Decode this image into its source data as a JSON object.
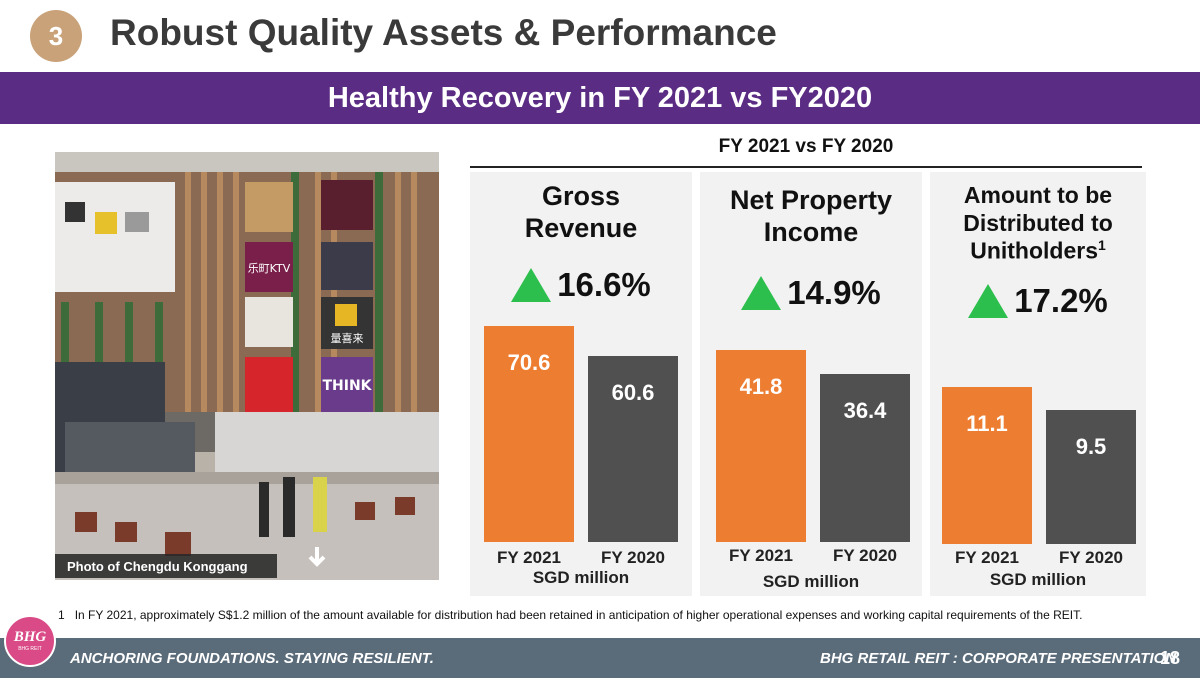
{
  "header": {
    "section_number": "3",
    "title": "Robust Quality Assets & Performance",
    "banner": "Healthy Recovery in FY 2021 vs FY2020"
  },
  "photo": {
    "caption": "Photo of Chengdu Konggang",
    "signs": [
      "乐町KTV",
      "THINK",
      "量喜来"
    ]
  },
  "comparison": {
    "title": "FY 2021 vs FY 2020",
    "panels": [
      {
        "heading": "Gross Revenue",
        "heading_lines": [
          "Gross",
          "Revenue"
        ],
        "growth": "16.6%",
        "fy2021": "70.6",
        "fy2020": "60.6",
        "unit": "SGD million"
      },
      {
        "heading": "Net Property Income",
        "heading_lines": [
          "Net Property",
          "Income"
        ],
        "growth": "14.9%",
        "fy2021": "41.8",
        "fy2020": "36.4",
        "unit": "SGD million"
      },
      {
        "heading": "Amount to be Distributed to Unitholders",
        "heading_lines": [
          "Amount to be",
          "Distributed to",
          "Unitholders"
        ],
        "heading_sup": "1",
        "growth": "17.2%",
        "fy2021": "11.1",
        "fy2020": "9.5",
        "unit": "SGD million"
      }
    ],
    "x_labels": [
      "FY 2021",
      "FY 2020"
    ],
    "colors": {
      "fy2021": "#ed7d31",
      "fy2020": "#505050",
      "growth_arrow": "#2dbf4d"
    }
  },
  "footnote": {
    "marker": "1",
    "text": "In FY 2021, approximately S$1.2 million of the amount available for distribution had been retained in anticipation of higher operational expenses and working capital requirements of the REIT."
  },
  "footer": {
    "logo": "BHG",
    "logo_sub": "BHG REIT",
    "tagline": "ANCHORING FOUNDATIONS. STAYING RESILIENT.",
    "presentation": "BHG RETAIL REIT : CORPORATE PRESENTATION",
    "page": "18"
  },
  "chart_data": {
    "type": "bar",
    "title": "FY 2021 vs FY 2020",
    "categories": [
      "FY 2021",
      "FY 2020"
    ],
    "ylabel": "SGD million",
    "groups": [
      {
        "name": "Gross Revenue",
        "values": [
          70.6,
          60.6
        ],
        "growth": "16.6%"
      },
      {
        "name": "Net Property Income",
        "values": [
          41.8,
          36.4
        ],
        "growth": "14.9%"
      },
      {
        "name": "Amount to be Distributed to Unitholders",
        "values": [
          11.1,
          9.5
        ],
        "growth": "17.2%"
      }
    ]
  }
}
